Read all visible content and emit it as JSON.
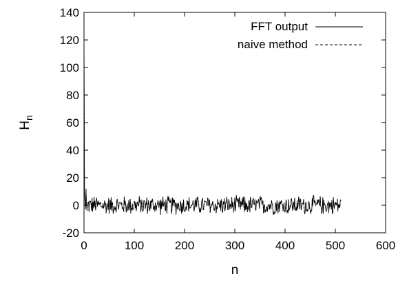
{
  "chart_data": {
    "type": "line",
    "title": "",
    "xlabel": "n",
    "ylabel": "H",
    "ylabel_subscript": "n",
    "xlim": [
      0,
      600
    ],
    "ylim": [
      -20,
      140
    ],
    "x_ticks": [
      0,
      100,
      200,
      300,
      400,
      500,
      600
    ],
    "y_ticks": [
      -20,
      0,
      20,
      40,
      60,
      80,
      100,
      120,
      140
    ],
    "grid": false,
    "legend_position": "top-right",
    "series": [
      {
        "name": "FFT output",
        "style": "solid",
        "color": "#000000",
        "x_start": 0,
        "x_step": 1,
        "initial_values": [
          127,
          10,
          2,
          -3,
          12,
          0,
          -4
        ],
        "noise_envelope": 7,
        "x_end": 511
      },
      {
        "name": "naive method",
        "style": "dashed",
        "color": "#000000",
        "same_as": "FFT output"
      }
    ]
  }
}
